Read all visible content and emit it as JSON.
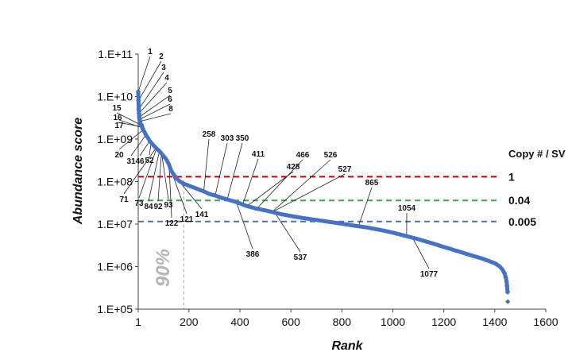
{
  "chart_data": {
    "type": "scatter",
    "title": "",
    "xlabel": "Rank",
    "ylabel": "Abundance score",
    "xlim": [
      1,
      1600
    ],
    "ylim": [
      100000,
      100000000000
    ],
    "yscale": "log",
    "x_ticks": [
      1,
      200,
      400,
      600,
      800,
      1000,
      1200,
      1400,
      1600
    ],
    "x_tick_labels": [
      "1",
      "200",
      "400",
      "600",
      "800",
      "1000",
      "1200",
      "1400",
      "1600"
    ],
    "y_ticks": [
      100000,
      1000000,
      10000000,
      100000000,
      1000000000,
      10000000000,
      100000000000
    ],
    "y_tick_labels": [
      "1.E+05",
      "1.E+06",
      "1.E+07",
      "1.E+08",
      "1.E+09",
      "1.E+10",
      "1.E+11"
    ],
    "series_color": "#4472c4",
    "curve_points": [
      [
        1,
        13000000000.0
      ],
      [
        2,
        8000000000.0
      ],
      [
        3,
        5000000000.0
      ],
      [
        4,
        4000000000.0
      ],
      [
        5,
        3300000000.0
      ],
      [
        6,
        2900000000.0
      ],
      [
        8,
        2600000000.0
      ],
      [
        10,
        2300000000.0
      ],
      [
        15,
        2100000000.0
      ],
      [
        16,
        1950000000.0
      ],
      [
        17,
        1850000000.0
      ],
      [
        20,
        1650000000.0
      ],
      [
        25,
        1500000000.0
      ],
      [
        31,
        1250000000.0
      ],
      [
        40,
        1050000000.0
      ],
      [
        46,
        900000000.0
      ],
      [
        52,
        820000000.0
      ],
      [
        60,
        720000000.0
      ],
      [
        71,
        620000000.0
      ],
      [
        73,
        600000000.0
      ],
      [
        80,
        550000000.0
      ],
      [
        84,
        520000000.0
      ],
      [
        92,
        460000000.0
      ],
      [
        93,
        450000000.0
      ],
      [
        100,
        400000000.0
      ],
      [
        110,
        340000000.0
      ],
      [
        122,
        250000000.0
      ],
      [
        130,
        180000000.0
      ],
      [
        141,
        145000000.0
      ],
      [
        150,
        120000000.0
      ],
      [
        165,
        100000000.0
      ],
      [
        180,
        89000000.0
      ],
      [
        200,
        80000000.0
      ],
      [
        225,
        70000000.0
      ],
      [
        258,
        59000000.0
      ],
      [
        280,
        51000000.0
      ],
      [
        303,
        47000000.0
      ],
      [
        320,
        43000000.0
      ],
      [
        350,
        38000000.0
      ],
      [
        386,
        33000000.0
      ],
      [
        411,
        29000000.0
      ],
      [
        428,
        26500000.0
      ],
      [
        466,
        23000000.0
      ],
      [
        500,
        21000000.0
      ],
      [
        526,
        19300000.0
      ],
      [
        537,
        18600000.0
      ],
      [
        560,
        17200000.0
      ],
      [
        600,
        15500000.0
      ],
      [
        650,
        13800000.0
      ],
      [
        700,
        12500000.0
      ],
      [
        750,
        11300000.0
      ],
      [
        800,
        10200000.0
      ],
      [
        865,
        8900000.0
      ],
      [
        900,
        8300000.0
      ],
      [
        950,
        7300000.0
      ],
      [
        1000,
        6300000.0
      ],
      [
        1054,
        5200000.0
      ],
      [
        1077,
        4800000.0
      ],
      [
        1100,
        4400000.0
      ],
      [
        1150,
        3600000.0
      ],
      [
        1200,
        2900000.0
      ],
      [
        1250,
        2350000.0
      ],
      [
        1300,
        1900000.0
      ],
      [
        1350,
        1550000.0
      ],
      [
        1400,
        1200000.0
      ],
      [
        1420,
        1000000.0
      ],
      [
        1430,
        850000.0
      ],
      [
        1438,
        700000.0
      ],
      [
        1443,
        550000.0
      ],
      [
        1446,
        450000.0
      ],
      [
        1448,
        350000.0
      ],
      [
        1450,
        250000.0
      ],
      [
        1451,
        150000.0
      ]
    ],
    "annotations": [
      {
        "rank": 1,
        "label": "1"
      },
      {
        "rank": 2,
        "label": "2"
      },
      {
        "rank": 3,
        "label": "3"
      },
      {
        "rank": 4,
        "label": "4"
      },
      {
        "rank": 5,
        "label": "5"
      },
      {
        "rank": 6,
        "label": "6"
      },
      {
        "rank": 8,
        "label": "8"
      },
      {
        "rank": 15,
        "label": "15"
      },
      {
        "rank": 16,
        "label": "16"
      },
      {
        "rank": 17,
        "label": "17"
      },
      {
        "rank": 20,
        "label": "20"
      },
      {
        "rank": 31,
        "label": "31"
      },
      {
        "rank": 46,
        "label": "46"
      },
      {
        "rank": 52,
        "label": "52"
      },
      {
        "rank": 71,
        "label": "71"
      },
      {
        "rank": 73,
        "label": "73"
      },
      {
        "rank": 84,
        "label": "84"
      },
      {
        "rank": 92,
        "label": "92"
      },
      {
        "rank": 93,
        "label": "93"
      },
      {
        "rank": 121,
        "label": "121"
      },
      {
        "rank": 122,
        "label": "122"
      },
      {
        "rank": 141,
        "label": "141"
      },
      {
        "rank": 258,
        "label": "258"
      },
      {
        "rank": 303,
        "label": "303"
      },
      {
        "rank": 350,
        "label": "350"
      },
      {
        "rank": 386,
        "label": "386"
      },
      {
        "rank": 411,
        "label": "411"
      },
      {
        "rank": 428,
        "label": "428"
      },
      {
        "rank": 466,
        "label": "466"
      },
      {
        "rank": 526,
        "label": "526"
      },
      {
        "rank": 527,
        "label": "527"
      },
      {
        "rank": 537,
        "label": "537"
      },
      {
        "rank": 865,
        "label": "865"
      },
      {
        "rank": 1054,
        "label": "1054"
      },
      {
        "rank": 1077,
        "label": "1077"
      }
    ],
    "thresholds": [
      {
        "value": 130000000,
        "label": "1",
        "color": "#c00000"
      },
      {
        "value": 36000000,
        "label": "0.04",
        "color": "#3aa655"
      },
      {
        "value": 11500000,
        "label": "0.005",
        "color": "#4472c4"
      }
    ],
    "threshold_legend_title": "Copy # / SV",
    "percentile_marker": {
      "rank": 180,
      "label": "90%",
      "color": "#b5b5b5"
    }
  }
}
